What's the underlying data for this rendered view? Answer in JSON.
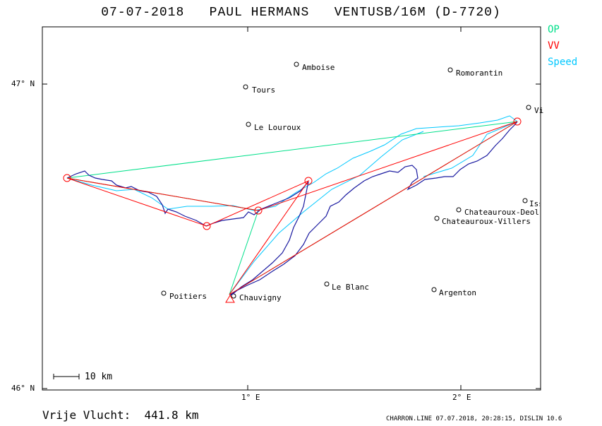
{
  "title": "07-07-2018   PAUL HERMANS   VENTUSB/16M (D-7720)",
  "legend": [
    {
      "label": "OP",
      "color": "#00e08a"
    },
    {
      "label": "VV",
      "color": "#ff0000"
    },
    {
      "label": "Speed",
      "color": "#00c8ff"
    }
  ],
  "axes": {
    "lat_ticks": [
      "47° N",
      "46° N"
    ],
    "lon_ticks": [
      "1° E",
      "2° E"
    ]
  },
  "scale_bar": "10 km",
  "free_flight": "Vrije Vlucht:  441.8 km",
  "footer": "CHARRON.LINE 07.07.2018, 20:28:15, DISLIN 10.6",
  "places": [
    {
      "name": "Amboise"
    },
    {
      "name": "Romorantin"
    },
    {
      "name": "Tours"
    },
    {
      "name": "Vi"
    },
    {
      "name": "Le Louroux"
    },
    {
      "name": "Isso"
    },
    {
      "name": "Chateauroux-Deols"
    },
    {
      "name": "Chateauroux-Villers"
    },
    {
      "name": "Poitiers"
    },
    {
      "name": "Le Blanc"
    },
    {
      "name": "Argenton"
    },
    {
      "name": "Chauvigny"
    }
  ],
  "colors": {
    "track": "#1a1aa0",
    "op": "#00e08a",
    "vv": "#ff0000",
    "speed": "#00c8ff"
  }
}
